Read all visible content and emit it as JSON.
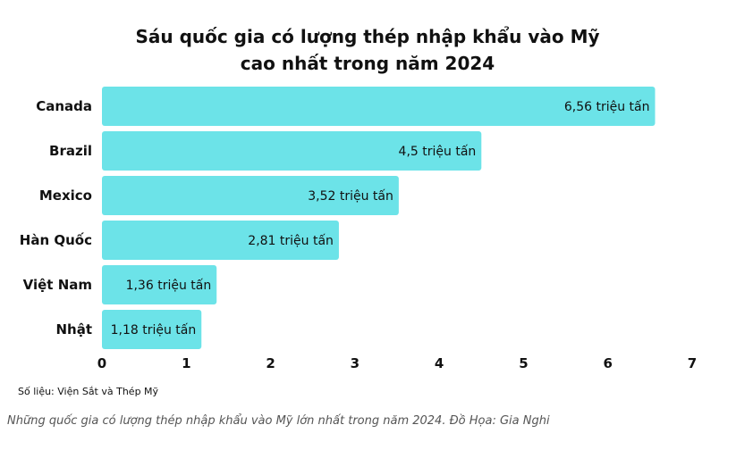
{
  "chart_data": {
    "type": "bar",
    "orientation": "horizontal",
    "title": "Sáu quốc gia có lượng thép nhập khẩu vào Mỹ cao nhất trong năm 2024",
    "title_lines": [
      "Sáu quốc gia có lượng thép nhập khẩu vào Mỹ",
      "cao nhất trong năm 2024"
    ],
    "categories": [
      "Canada",
      "Brazil",
      "Mexico",
      "Hàn Quốc",
      "Việt Nam",
      "Nhật"
    ],
    "values": [
      6.56,
      4.5,
      3.52,
      2.81,
      1.36,
      1.18
    ],
    "data_labels": [
      "6,56 triệu tấn",
      "4,5 triệu tấn",
      "3,52 triệu tấn",
      "2,81 triệu tấn",
      "1,36 triệu tấn",
      "1,18 triệu tấn"
    ],
    "highlight_category": "Việt Nam",
    "xlim": [
      0,
      7
    ],
    "xticks": [
      "0",
      "1",
      "2",
      "3",
      "4",
      "5",
      "6",
      "7"
    ],
    "xlabel": "",
    "ylabel": "",
    "grid": false,
    "colors": {
      "bar": "#6ce3e8",
      "text": "#111111",
      "highlight": "#e03a3a"
    }
  },
  "source_text": "Số liệu: Viện Sắt và Thép Mỹ",
  "caption_text": "Những quốc gia có lượng thép nhập khẩu vào Mỹ lớn nhất trong năm 2024. Đồ Họa: Gia Nghi"
}
